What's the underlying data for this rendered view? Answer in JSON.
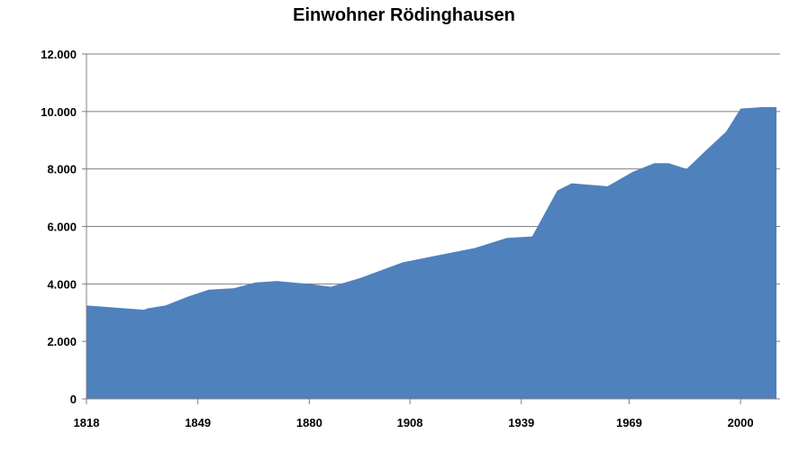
{
  "chart_data": {
    "type": "area",
    "title": "Einwohner Rödinghausen",
    "xlabel": "",
    "ylabel": "",
    "x_ticks": [
      "1818",
      "1849",
      "1880",
      "1908",
      "1939",
      "1969",
      "2000"
    ],
    "y_ticks": [
      "0",
      "2.000",
      "4.000",
      "6.000",
      "8.000",
      "10.000",
      "12.000"
    ],
    "ylim": [
      0,
      12000
    ],
    "xlim": [
      1818,
      2011
    ],
    "grid": "horizontal",
    "legend": "none",
    "series": [
      {
        "color": "#4f81bd",
        "x": [
          1818,
          1834,
          1835,
          1840,
          1846,
          1852,
          1859,
          1865,
          1871,
          1880,
          1886,
          1894,
          1906,
          1916,
          1926,
          1935,
          1942,
          1949,
          1953,
          1963,
          1970,
          1976,
          1980,
          1985,
          1990,
          1996,
          2000,
          2006,
          2010
        ],
        "values": [
          3250,
          3100,
          3150,
          3250,
          3550,
          3800,
          3850,
          4050,
          4100,
          4000,
          3900,
          4200,
          4750,
          5000,
          5250,
          5600,
          5650,
          7250,
          7500,
          7400,
          7900,
          8200,
          8200,
          8000,
          8600,
          9300,
          10100,
          10150,
          10150
        ]
      }
    ]
  }
}
